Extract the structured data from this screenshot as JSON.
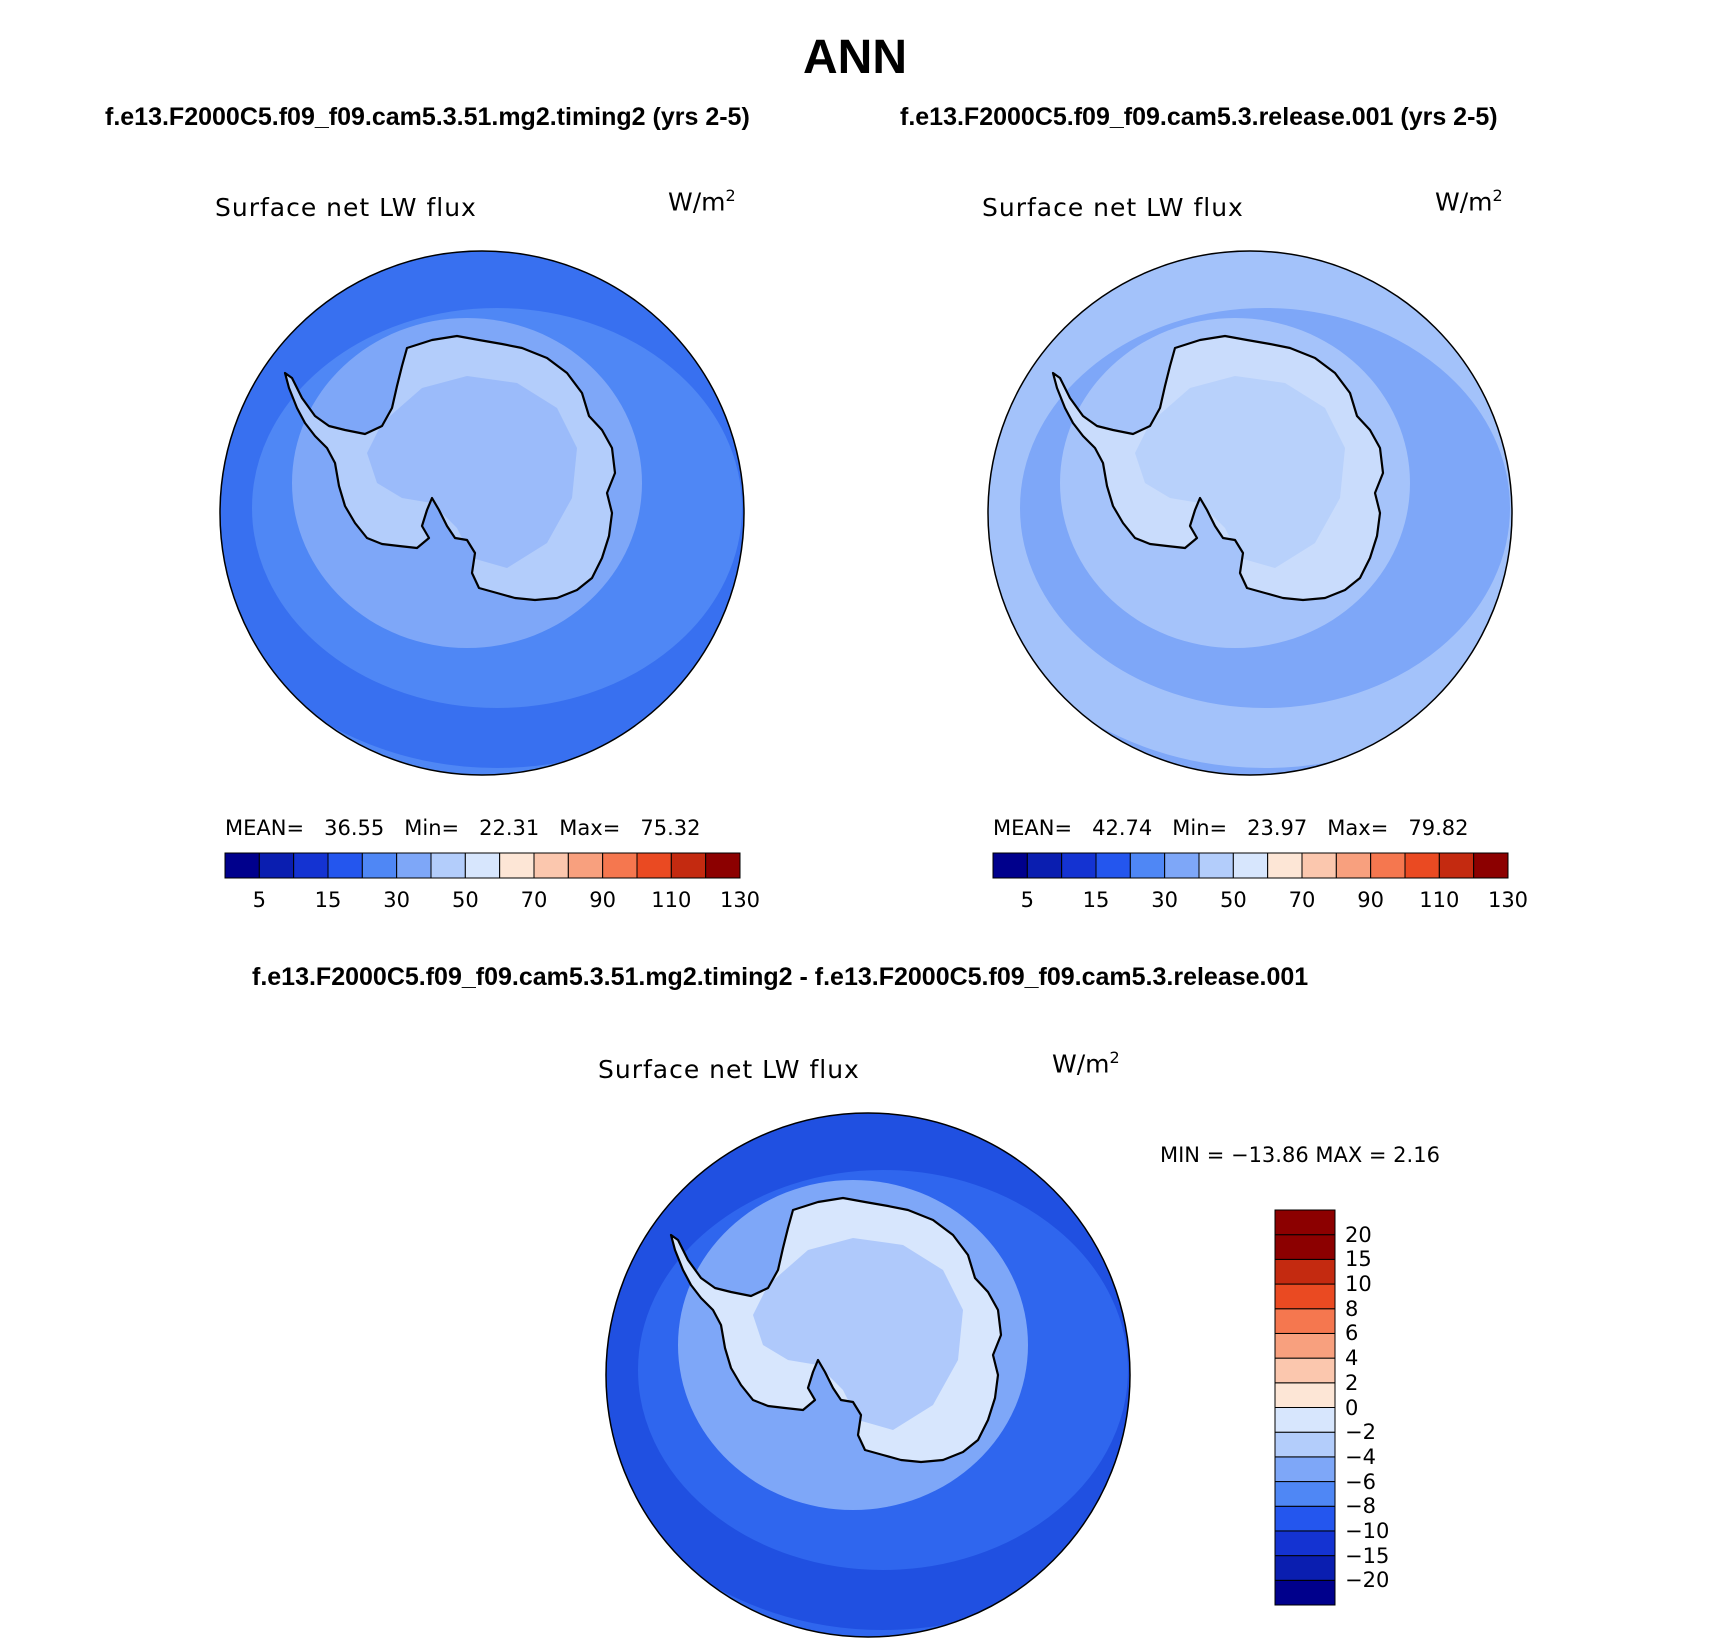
{
  "title": "ANN",
  "units": {
    "base": "W/m",
    "exp": "2"
  },
  "panels": [
    {
      "case": "f.e13.F2000C5.f09_f09.cam5.3.51.mg2.timing2 (yrs 2-5)",
      "variable": "Surface net LW flux",
      "stats": {
        "mean_label": "MEAN=",
        "mean": "36.55",
        "min_label": "Min=",
        "min": "22.31",
        "max_label": "Max=",
        "max": "75.32"
      },
      "ocean_color": "#4f87f5",
      "band_color": "#2f66ee",
      "inner_color": "#7ea7f8",
      "ice_color": "#b3cdfb"
    },
    {
      "case": "f.e13.F2000C5.f09_f09.cam5.3.release.001 (yrs 2-5)",
      "variable": "Surface net LW flux",
      "stats": {
        "mean_label": "MEAN=",
        "mean": "42.74",
        "min_label": "Min=",
        "min": "23.97",
        "max_label": "Max=",
        "max": "79.82"
      },
      "ocean_color": "#7ea7f8",
      "band_color": "#b3cdfb",
      "inner_color": "#a5c3fa",
      "ice_color": "#c9dcfc"
    },
    {
      "case": "f.e13.F2000C5.f09_f09.cam5.3.51.mg2.timing2 - f.e13.F2000C5.f09_f09.cam5.3.release.001",
      "variable": "Surface net LW flux",
      "stats": {
        "text": "MIN = −13.86 MAX =    2.16"
      },
      "ocean_color": "#2f66ee",
      "band_color": "#1a47dc",
      "inner_color": "#7ea7f8",
      "ice_color": "#d7e6fd"
    }
  ],
  "colorbar_main": {
    "colors": [
      "#00008c",
      "#0a1eb0",
      "#1433d2",
      "#2456ee",
      "#4f87f5",
      "#7ea7f8",
      "#b3cdfb",
      "#d7e6fd",
      "#fde6d6",
      "#fbc7ae",
      "#f8a07e",
      "#f5774f",
      "#ea4a22",
      "#c42a10",
      "#8c0000"
    ],
    "tick_labels": [
      "5",
      "15",
      "30",
      "50",
      "70",
      "90",
      "110",
      "130"
    ]
  },
  "colorbar_diff": {
    "colors": [
      "#00008c",
      "#0a1eb0",
      "#1433d2",
      "#2456ee",
      "#4f87f5",
      "#7ea7f8",
      "#b3cdfb",
      "#d7e6fd",
      "#fde6d6",
      "#fbc7ae",
      "#f8a07e",
      "#f5774f",
      "#ea4a22",
      "#c42a10",
      "#8c0000"
    ],
    "tick_labels": [
      "−20",
      "−15",
      "−10",
      "−8",
      "−6",
      "−4",
      "−2",
      "0",
      "2",
      "4",
      "6",
      "8",
      "10",
      "15",
      "20"
    ]
  }
}
